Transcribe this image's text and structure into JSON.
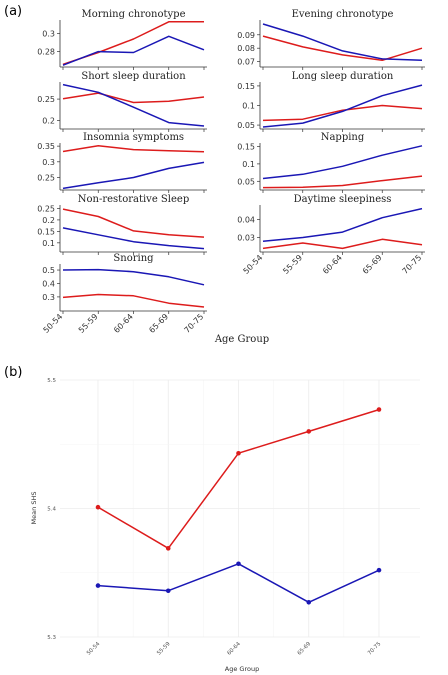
{
  "figure": {
    "panel_a_tag": "(a)",
    "panel_b_tag": "(b)"
  },
  "colors": {
    "red": "#dd1c1c",
    "blue": "#1a17b5"
  },
  "chart_data": [
    {
      "type": "line",
      "panel": "a",
      "xlabel": "Age Group",
      "categories": [
        "50-54",
        "55-59",
        "60-64",
        "65-69",
        "70-75"
      ],
      "subplots": [
        {
          "title": "Morning chronotype",
          "yticks": [
            0.28,
            0.3
          ],
          "ylim": [
            0.263,
            0.315
          ],
          "series": [
            {
              "color": "red",
              "values": [
                0.266,
                0.279,
                0.294,
                0.313,
                0.313
              ]
            },
            {
              "color": "blue",
              "values": [
                0.265,
                0.28,
                0.279,
                0.297,
                0.282
              ]
            }
          ]
        },
        {
          "title": "Evening chronotype",
          "yticks": [
            0.07,
            0.08,
            0.09
          ],
          "ylim": [
            0.066,
            0.101
          ],
          "series": [
            {
              "color": "red",
              "values": [
                0.089,
                0.081,
                0.075,
                0.071,
                0.08
              ]
            },
            {
              "color": "blue",
              "values": [
                0.098,
                0.089,
                0.078,
                0.072,
                0.071
              ]
            }
          ]
        },
        {
          "title": "Short sleep duration",
          "yticks": [
            0.2,
            0.25
          ],
          "ylim": [
            0.18,
            0.29
          ],
          "series": [
            {
              "color": "red",
              "values": [
                0.251,
                0.264,
                0.242,
                0.245,
                0.255
              ]
            },
            {
              "color": "blue",
              "values": [
                0.284,
                0.266,
                0.231,
                0.195,
                0.187
              ]
            }
          ]
        },
        {
          "title": "Long sleep duration",
          "yticks": [
            0.05,
            0.1,
            0.15
          ],
          "ylim": [
            0.04,
            0.16
          ],
          "series": [
            {
              "color": "red",
              "values": [
                0.062,
                0.065,
                0.088,
                0.1,
                0.092
              ]
            },
            {
              "color": "blue",
              "values": [
                0.045,
                0.055,
                0.085,
                0.125,
                0.152
              ]
            }
          ]
        },
        {
          "title": "Insomnia symptoms",
          "yticks": [
            0.25,
            0.3,
            0.35
          ],
          "ylim": [
            0.21,
            0.36
          ],
          "series": [
            {
              "color": "red",
              "values": [
                0.333,
                0.351,
                0.339,
                0.335,
                0.332
              ]
            },
            {
              "color": "blue",
              "values": [
                0.215,
                0.233,
                0.25,
                0.279,
                0.298
              ]
            }
          ]
        },
        {
          "title": "Napping",
          "yticks": [
            0.05,
            0.1,
            0.15
          ],
          "ylim": [
            0.025,
            0.16
          ],
          "series": [
            {
              "color": "red",
              "values": [
                0.032,
                0.033,
                0.038,
                0.052,
                0.065
              ]
            },
            {
              "color": "blue",
              "values": [
                0.058,
                0.07,
                0.093,
                0.125,
                0.152
              ]
            }
          ]
        },
        {
          "title": "Non-restorative Sleep",
          "yticks": [
            0.1,
            0.15,
            0.2,
            0.25
          ],
          "ylim": [
            0.06,
            0.265
          ],
          "series": [
            {
              "color": "red",
              "values": [
                0.247,
                0.215,
                0.152,
                0.135,
                0.125
              ]
            },
            {
              "color": "blue",
              "values": [
                0.165,
                0.135,
                0.105,
                0.088,
                0.075
              ]
            }
          ]
        },
        {
          "title": "Daytime sleepiness",
          "yticks": [
            0.03,
            0.04
          ],
          "ylim": [
            0.022,
            0.048
          ],
          "series": [
            {
              "color": "red",
              "values": [
                0.024,
                0.027,
                0.024,
                0.029,
                0.026
              ]
            },
            {
              "color": "blue",
              "values": [
                0.028,
                0.03,
                0.033,
                0.041,
                0.046
              ]
            }
          ]
        },
        {
          "title": "Snoring",
          "yticks": [
            0.3,
            0.4,
            0.5
          ],
          "ylim": [
            0.195,
            0.545
          ],
          "series": [
            {
              "color": "red",
              "values": [
                0.296,
                0.318,
                0.308,
                0.253,
                0.225
              ]
            },
            {
              "color": "blue",
              "values": [
                0.5,
                0.503,
                0.488,
                0.45,
                0.39
              ]
            }
          ]
        }
      ]
    },
    {
      "type": "line",
      "panel": "b",
      "xlabel": "Age Group",
      "ylabel": "Mean SHS",
      "categories": [
        "50-54",
        "55-59",
        "60-64",
        "65-69",
        "70-75"
      ],
      "yticks": [
        5.3,
        5.4,
        5.5
      ],
      "ylim": [
        5.3,
        5.5
      ],
      "grid": true,
      "series": [
        {
          "color": "red",
          "values": [
            5.401,
            5.369,
            5.443,
            5.46,
            5.477
          ]
        },
        {
          "color": "blue",
          "values": [
            5.34,
            5.336,
            5.357,
            5.327,
            5.352
          ]
        }
      ]
    }
  ]
}
